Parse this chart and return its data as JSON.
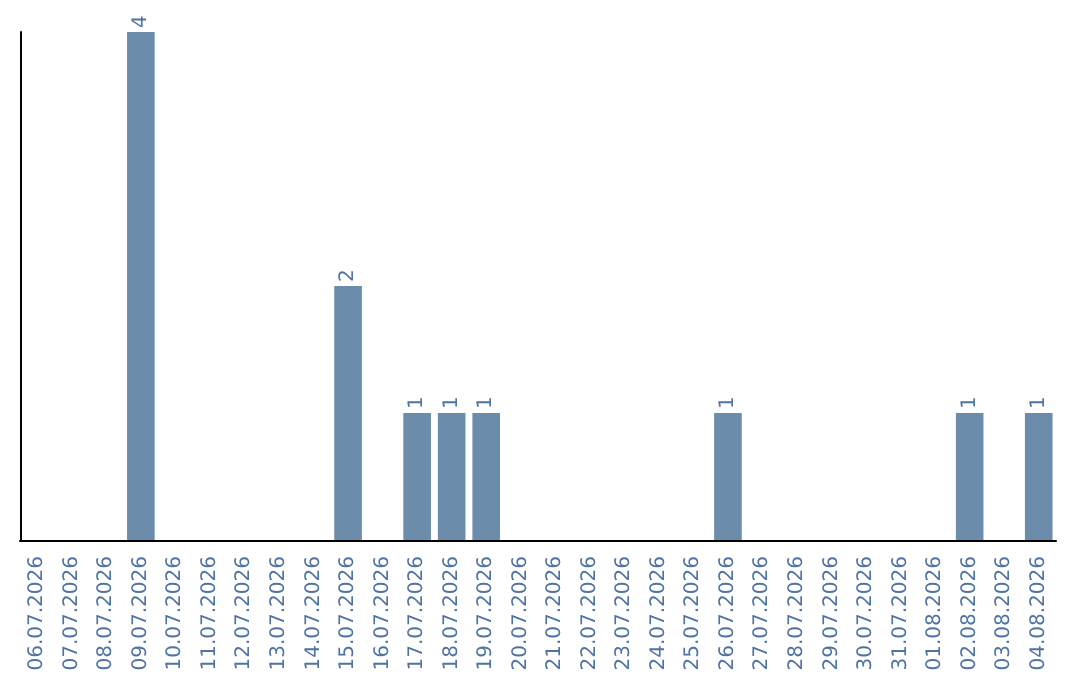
{
  "chart_data": {
    "type": "bar",
    "categories": [
      "06.07.2026",
      "07.07.2026",
      "08.07.2026",
      "09.07.2026",
      "10.07.2026",
      "11.07.2026",
      "12.07.2026",
      "13.07.2026",
      "14.07.2026",
      "15.07.2026",
      "16.07.2026",
      "17.07.2026",
      "18.07.2026",
      "19.07.2026",
      "20.07.2026",
      "21.07.2026",
      "22.07.2026",
      "23.07.2026",
      "24.07.2026",
      "25.07.2026",
      "26.07.2026",
      "27.07.2026",
      "28.07.2026",
      "29.07.2026",
      "30.07.2026",
      "31.07.2026",
      "01.08.2026",
      "02.08.2026",
      "03.08.2026",
      "04.08.2026"
    ],
    "values": [
      0,
      0,
      0,
      4,
      0,
      0,
      0,
      0,
      0,
      2,
      0,
      1,
      1,
      1,
      0,
      0,
      0,
      0,
      0,
      0,
      1,
      0,
      0,
      0,
      0,
      0,
      0,
      1,
      0,
      1
    ],
    "value_labels": [
      null,
      null,
      null,
      "4",
      null,
      null,
      null,
      null,
      null,
      "2",
      null,
      "1",
      "1",
      "1",
      null,
      null,
      null,
      null,
      null,
      null,
      "1",
      null,
      null,
      null,
      null,
      null,
      null,
      "1",
      null,
      "1"
    ],
    "color": "#6b8cab",
    "tick_labels": "x"
  }
}
